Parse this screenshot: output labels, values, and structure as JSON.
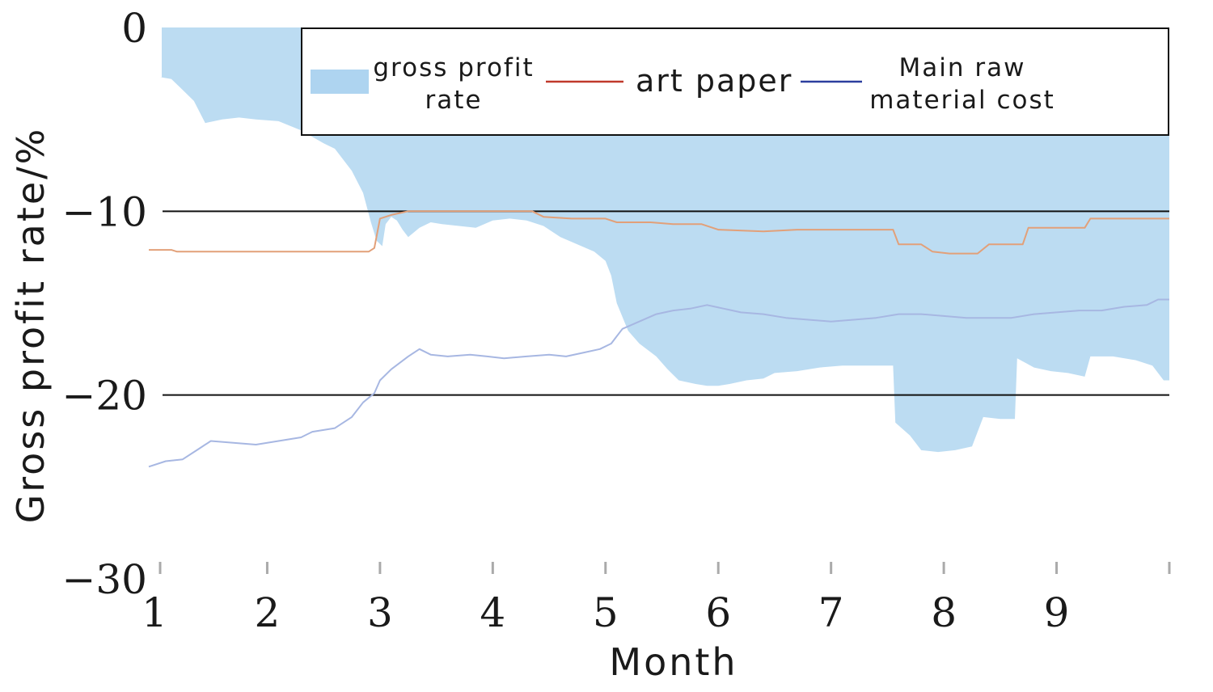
{
  "chart_data": {
    "type": "area",
    "xlabel": "Month",
    "ylabel": "Gross profit rate/%",
    "xlim": [
      1,
      10
    ],
    "ylim": [
      -30,
      0
    ],
    "x_ticks": [
      1,
      2,
      3,
      4,
      5,
      6,
      7,
      8,
      9
    ],
    "y_ticks": [
      0,
      -10,
      -20,
      -30
    ],
    "y_tick_labels": [
      "0",
      "−10",
      "−20",
      "−30"
    ],
    "grid_lines_y": [
      -10,
      -20
    ],
    "legend": {
      "placement": "top",
      "entries": [
        "gross profit rate",
        "art paper",
        "Main raw material cost"
      ]
    },
    "colors": {
      "area": "#bcdcf2",
      "art_paper": "#e2a079",
      "material_cost": "#a7b7e2",
      "legend_art_paper": "#c0392b",
      "legend_material_cost": "#2c3e9e",
      "legend_area": "#aed4f0"
    },
    "series": [
      {
        "name": "gross profit rate",
        "type": "area",
        "base": 0,
        "points": [
          [
            1.05,
            -2.7
          ],
          [
            1.15,
            -2.8
          ],
          [
            1.25,
            -3.4
          ],
          [
            1.35,
            -4.0
          ],
          [
            1.45,
            -5.2
          ],
          [
            1.6,
            -5.0
          ],
          [
            1.75,
            -4.9
          ],
          [
            1.9,
            -5.0
          ],
          [
            2.1,
            -5.1
          ],
          [
            2.3,
            -5.6
          ],
          [
            2.5,
            -6.3
          ],
          [
            2.6,
            -6.6
          ],
          [
            2.75,
            -7.8
          ],
          [
            2.85,
            -9.0
          ],
          [
            2.92,
            -10.6
          ],
          [
            2.97,
            -11.6
          ],
          [
            3.02,
            -11.9
          ],
          [
            3.05,
            -10.7
          ],
          [
            3.1,
            -10.3
          ],
          [
            3.15,
            -10.5
          ],
          [
            3.2,
            -11.0
          ],
          [
            3.25,
            -11.4
          ],
          [
            3.35,
            -10.9
          ],
          [
            3.45,
            -10.6
          ],
          [
            3.55,
            -10.7
          ],
          [
            3.7,
            -10.8
          ],
          [
            3.85,
            -10.9
          ],
          [
            4.0,
            -10.5
          ],
          [
            4.15,
            -10.4
          ],
          [
            4.3,
            -10.5
          ],
          [
            4.45,
            -10.8
          ],
          [
            4.6,
            -11.4
          ],
          [
            4.75,
            -11.8
          ],
          [
            4.9,
            -12.2
          ],
          [
            5.0,
            -12.7
          ],
          [
            5.05,
            -13.5
          ],
          [
            5.1,
            -15.0
          ],
          [
            5.2,
            -16.5
          ],
          [
            5.3,
            -17.2
          ],
          [
            5.45,
            -17.9
          ],
          [
            5.55,
            -18.6
          ],
          [
            5.65,
            -19.2
          ],
          [
            5.8,
            -19.4
          ],
          [
            5.9,
            -19.5
          ],
          [
            6.0,
            -19.5
          ],
          [
            6.1,
            -19.4
          ],
          [
            6.25,
            -19.2
          ],
          [
            6.4,
            -19.1
          ],
          [
            6.5,
            -18.8
          ],
          [
            6.7,
            -18.7
          ],
          [
            6.9,
            -18.5
          ],
          [
            7.1,
            -18.4
          ],
          [
            7.3,
            -18.4
          ],
          [
            7.42,
            -18.4
          ],
          [
            7.55,
            -18.4
          ],
          [
            7.57,
            -21.5
          ],
          [
            7.7,
            -22.2
          ],
          [
            7.8,
            -23.0
          ],
          [
            7.95,
            -23.1
          ],
          [
            8.1,
            -23.0
          ],
          [
            8.25,
            -22.8
          ],
          [
            8.35,
            -21.2
          ],
          [
            8.5,
            -21.3
          ],
          [
            8.63,
            -21.3
          ],
          [
            8.65,
            -18.0
          ],
          [
            8.8,
            -18.5
          ],
          [
            8.95,
            -18.7
          ],
          [
            9.1,
            -18.8
          ],
          [
            9.25,
            -19.0
          ],
          [
            9.3,
            -17.9
          ],
          [
            9.5,
            -17.9
          ],
          [
            9.7,
            -18.1
          ],
          [
            9.85,
            -18.4
          ],
          [
            9.95,
            -19.2
          ],
          [
            10.0,
            -19.2
          ]
        ]
      },
      {
        "name": "art paper",
        "type": "line",
        "points": [
          [
            0.95,
            -12.1
          ],
          [
            1.15,
            -12.1
          ],
          [
            1.2,
            -12.2
          ],
          [
            1.5,
            -12.2
          ],
          [
            2.0,
            -12.2
          ],
          [
            2.5,
            -12.2
          ],
          [
            2.9,
            -12.2
          ],
          [
            2.95,
            -12.0
          ],
          [
            3.0,
            -10.4
          ],
          [
            3.1,
            -10.2
          ],
          [
            3.25,
            -10.0
          ],
          [
            3.5,
            -10.0
          ],
          [
            3.75,
            -10.0
          ],
          [
            4.0,
            -10.0
          ],
          [
            4.35,
            -10.0
          ],
          [
            4.45,
            -10.3
          ],
          [
            4.7,
            -10.4
          ],
          [
            5.0,
            -10.4
          ],
          [
            5.1,
            -10.6
          ],
          [
            5.4,
            -10.6
          ],
          [
            5.6,
            -10.7
          ],
          [
            5.85,
            -10.7
          ],
          [
            6.0,
            -11.0
          ],
          [
            6.4,
            -11.1
          ],
          [
            6.7,
            -11.0
          ],
          [
            7.0,
            -11.0
          ],
          [
            7.35,
            -11.0
          ],
          [
            7.55,
            -11.0
          ],
          [
            7.6,
            -11.8
          ],
          [
            7.8,
            -11.8
          ],
          [
            7.9,
            -12.2
          ],
          [
            8.05,
            -12.3
          ],
          [
            8.3,
            -12.3
          ],
          [
            8.4,
            -11.8
          ],
          [
            8.55,
            -11.8
          ],
          [
            8.7,
            -11.8
          ],
          [
            8.75,
            -10.9
          ],
          [
            9.0,
            -10.9
          ],
          [
            9.25,
            -10.9
          ],
          [
            9.3,
            -10.4
          ],
          [
            9.6,
            -10.4
          ],
          [
            10.0,
            -10.4
          ]
        ]
      },
      {
        "name": "Main raw material cost",
        "type": "line",
        "points": [
          [
            0.95,
            -23.9
          ],
          [
            1.1,
            -23.6
          ],
          [
            1.25,
            -23.5
          ],
          [
            1.4,
            -22.9
          ],
          [
            1.5,
            -22.5
          ],
          [
            1.7,
            -22.6
          ],
          [
            1.9,
            -22.7
          ],
          [
            2.1,
            -22.5
          ],
          [
            2.3,
            -22.3
          ],
          [
            2.4,
            -22.0
          ],
          [
            2.6,
            -21.8
          ],
          [
            2.75,
            -21.2
          ],
          [
            2.85,
            -20.4
          ],
          [
            2.95,
            -19.9
          ],
          [
            3.0,
            -19.2
          ],
          [
            3.1,
            -18.6
          ],
          [
            3.25,
            -17.9
          ],
          [
            3.35,
            -17.5
          ],
          [
            3.45,
            -17.8
          ],
          [
            3.6,
            -17.9
          ],
          [
            3.8,
            -17.8
          ],
          [
            3.95,
            -17.9
          ],
          [
            4.1,
            -18.0
          ],
          [
            4.3,
            -17.9
          ],
          [
            4.5,
            -17.8
          ],
          [
            4.65,
            -17.9
          ],
          [
            4.8,
            -17.7
          ],
          [
            4.95,
            -17.5
          ],
          [
            5.05,
            -17.2
          ],
          [
            5.15,
            -16.4
          ],
          [
            5.3,
            -16.0
          ],
          [
            5.45,
            -15.6
          ],
          [
            5.6,
            -15.4
          ],
          [
            5.75,
            -15.3
          ],
          [
            5.9,
            -15.1
          ],
          [
            6.05,
            -15.3
          ],
          [
            6.2,
            -15.5
          ],
          [
            6.4,
            -15.6
          ],
          [
            6.6,
            -15.8
          ],
          [
            6.8,
            -15.9
          ],
          [
            7.0,
            -16.0
          ],
          [
            7.2,
            -15.9
          ],
          [
            7.4,
            -15.8
          ],
          [
            7.6,
            -15.6
          ],
          [
            7.8,
            -15.6
          ],
          [
            8.0,
            -15.7
          ],
          [
            8.2,
            -15.8
          ],
          [
            8.4,
            -15.8
          ],
          [
            8.6,
            -15.8
          ],
          [
            8.8,
            -15.6
          ],
          [
            9.0,
            -15.5
          ],
          [
            9.2,
            -15.4
          ],
          [
            9.4,
            -15.4
          ],
          [
            9.6,
            -15.2
          ],
          [
            9.8,
            -15.1
          ],
          [
            9.9,
            -14.8
          ],
          [
            10.0,
            -14.8
          ]
        ]
      }
    ]
  }
}
